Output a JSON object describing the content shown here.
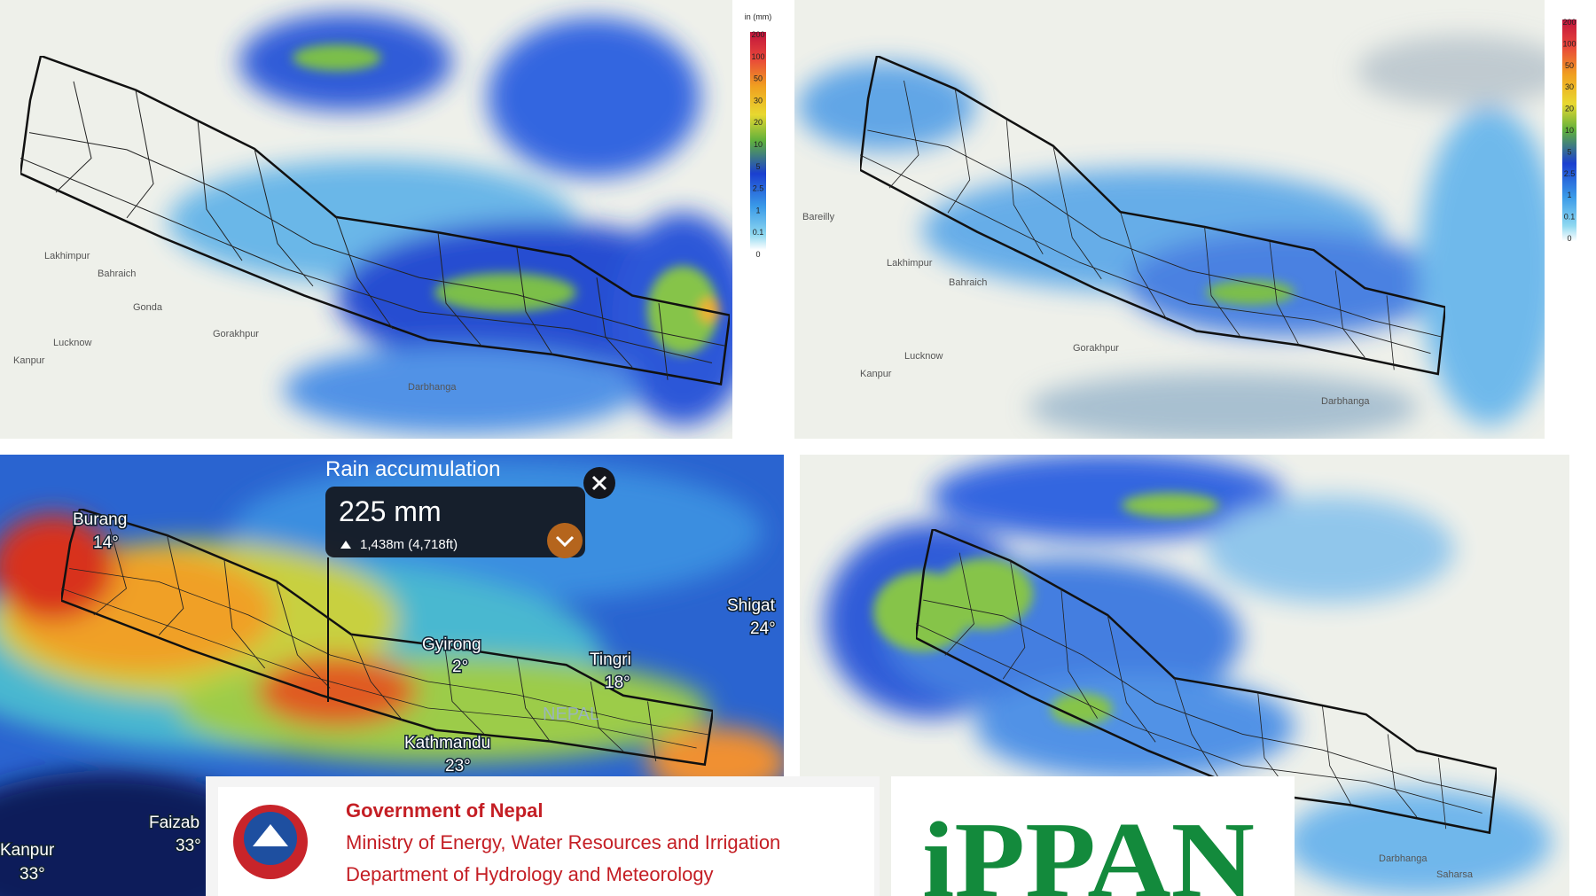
{
  "panels": [
    {
      "legend": {
        "unit": "in (mm)",
        "labels": [
          "200",
          "100",
          "50",
          "30",
          "20",
          "10",
          "5",
          "2.5",
          "1",
          "0.1",
          "0"
        ]
      },
      "places": [
        "Lakhimpur",
        "Bahraich",
        "Gonda",
        "Lucknow",
        "Gorakhpur",
        "Kanpur",
        "Darbhanga"
      ]
    },
    {
      "legend": {
        "labels": [
          "200",
          "100",
          "50",
          "30",
          "20",
          "10",
          "5",
          "2.5",
          "1",
          "0.1",
          "0"
        ]
      },
      "places": [
        "Bareilly",
        "Lakhimpur",
        "Bahraich",
        "Lucknow",
        "Gorakhpur",
        "Kanpur",
        "Darbhanga"
      ]
    },
    {
      "places": [
        {
          "name": "Burang",
          "temp": "14°"
        },
        {
          "name": "Gyirong",
          "temp": "2°"
        },
        {
          "name": "Tingri",
          "temp": "18°"
        },
        {
          "name": "Shigat",
          "temp": "24°"
        },
        {
          "name": "Kathmandu",
          "temp": "23°"
        },
        {
          "name": "Faizab",
          "temp": "33°"
        },
        {
          "name": "Kanpur",
          "temp": "33°"
        }
      ],
      "country": "NEPAL",
      "popup": {
        "title": "Rain accumulation",
        "value": "225 mm",
        "elevation": "1,438m (4,718ft)"
      }
    },
    {
      "places": [
        "Darbhanga",
        "Saharsa"
      ]
    }
  ],
  "banner": {
    "lines": [
      "Government of Nepal",
      "Ministry of Energy, Water Resources and Irrigation",
      "Department of Hydrology and Meteorology"
    ]
  },
  "logo": "iPPAN"
}
